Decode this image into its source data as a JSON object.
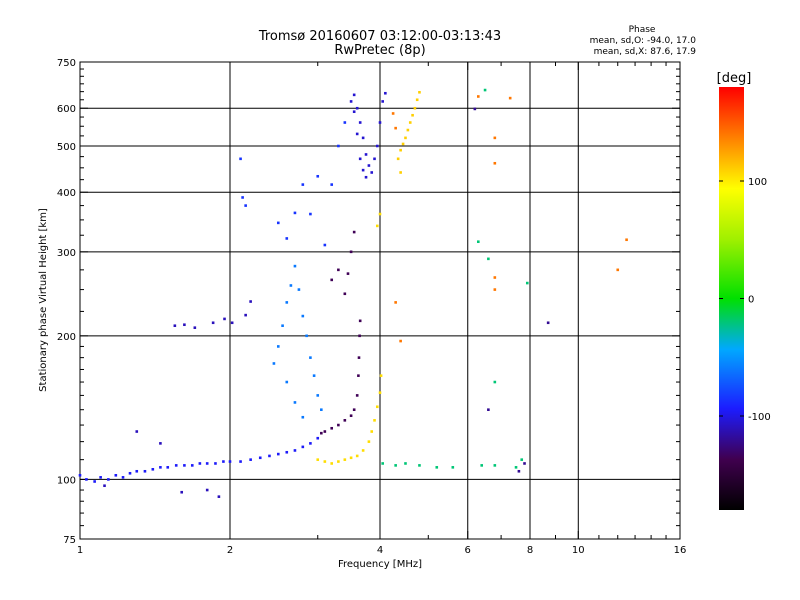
{
  "chart_data": {
    "type": "scatter",
    "title": "Tromsø 20160607 03:12:00-03:13:43",
    "subtitle": "RwPretec (8p)",
    "xlabel": "Frequency [MHz]",
    "ylabel": "Stationary phase Virtual Height [km]",
    "xscale": "log",
    "yscale": "log",
    "xlim": [
      1,
      16
    ],
    "ylim": [
      75,
      750
    ],
    "xticks": [
      1,
      2,
      4,
      6,
      8,
      10,
      16
    ],
    "yticks": [
      75,
      100,
      200,
      300,
      400,
      500,
      600,
      750
    ],
    "xgrid": [
      2,
      4,
      6,
      8,
      10
    ],
    "ygrid": [
      100,
      200,
      300,
      400,
      500,
      600
    ],
    "phase_info": {
      "heading": "Phase",
      "line1": "mean, sd,O: -94.0, 17.0",
      "line2": "mean, sd,X:  87.6, 17.9"
    },
    "colorbar": {
      "label": "[deg]",
      "range": [
        -180,
        180
      ],
      "ticks": [
        100,
        0,
        -100
      ],
      "tick_labels": [
        "100",
        "0",
        "-100"
      ]
    },
    "series": [
      {
        "color_phase": -95,
        "points": [
          [
            1.0,
            102
          ],
          [
            1.03,
            100
          ],
          [
            1.07,
            99
          ],
          [
            1.1,
            101
          ],
          [
            1.14,
            100
          ],
          [
            1.18,
            102
          ],
          [
            1.22,
            101
          ],
          [
            1.26,
            103
          ],
          [
            1.3,
            104
          ],
          [
            1.35,
            104
          ],
          [
            1.4,
            105
          ],
          [
            1.45,
            106
          ],
          [
            1.5,
            106
          ],
          [
            1.56,
            107
          ],
          [
            1.62,
            107
          ],
          [
            1.68,
            107
          ],
          [
            1.74,
            108
          ],
          [
            1.8,
            108
          ],
          [
            1.87,
            108
          ],
          [
            1.94,
            109
          ],
          [
            2.0,
            109
          ],
          [
            2.1,
            109
          ],
          [
            2.2,
            110
          ],
          [
            2.3,
            111
          ],
          [
            2.4,
            112
          ],
          [
            2.5,
            113
          ],
          [
            2.6,
            114
          ],
          [
            2.7,
            115
          ],
          [
            2.8,
            117
          ],
          [
            2.9,
            119
          ],
          [
            3.0,
            122
          ]
        ]
      },
      {
        "color_phase": -110,
        "points": [
          [
            1.12,
            97
          ],
          [
            1.3,
            126
          ],
          [
            1.45,
            119
          ],
          [
            1.6,
            94
          ],
          [
            1.8,
            95
          ],
          [
            1.9,
            92
          ],
          [
            1.55,
            210
          ],
          [
            1.62,
            211
          ],
          [
            1.7,
            208
          ],
          [
            1.85,
            213
          ],
          [
            1.95,
            217
          ],
          [
            2.02,
            213
          ],
          [
            2.15,
            221
          ],
          [
            2.2,
            236
          ]
        ]
      },
      {
        "color_phase": -85,
        "points": [
          [
            2.1,
            470
          ],
          [
            2.12,
            390
          ],
          [
            2.15,
            375
          ],
          [
            2.5,
            345
          ],
          [
            2.6,
            320
          ],
          [
            2.7,
            362
          ],
          [
            2.8,
            415
          ],
          [
            2.9,
            360
          ],
          [
            3.0,
            432
          ],
          [
            3.1,
            310
          ],
          [
            3.2,
            415
          ],
          [
            3.3,
            500
          ],
          [
            3.4,
            560
          ]
        ]
      },
      {
        "color_phase": -60,
        "points": [
          [
            2.45,
            175
          ],
          [
            2.5,
            190
          ],
          [
            2.55,
            210
          ],
          [
            2.6,
            235
          ],
          [
            2.65,
            255
          ],
          [
            2.7,
            280
          ],
          [
            2.75,
            250
          ],
          [
            2.8,
            220
          ],
          [
            2.85,
            200
          ],
          [
            2.9,
            180
          ],
          [
            2.95,
            165
          ],
          [
            3.0,
            150
          ],
          [
            3.05,
            140
          ],
          [
            2.6,
            160
          ],
          [
            2.7,
            145
          ],
          [
            2.8,
            135
          ]
        ]
      },
      {
        "color_phase": -135,
        "points": [
          [
            3.05,
            125
          ],
          [
            3.1,
            126
          ],
          [
            3.2,
            128
          ],
          [
            3.3,
            130
          ],
          [
            3.4,
            133
          ],
          [
            3.5,
            136
          ],
          [
            3.55,
            140
          ],
          [
            3.6,
            150
          ],
          [
            3.62,
            165
          ],
          [
            3.63,
            180
          ],
          [
            3.64,
            200
          ],
          [
            3.65,
            215
          ],
          [
            3.4,
            245
          ],
          [
            3.45,
            270
          ],
          [
            3.5,
            300
          ],
          [
            3.55,
            330
          ],
          [
            3.2,
            262
          ],
          [
            3.3,
            275
          ]
        ]
      },
      {
        "color_phase": -105,
        "points": [
          [
            3.5,
            620
          ],
          [
            3.55,
            640
          ],
          [
            3.6,
            600
          ],
          [
            3.65,
            560
          ],
          [
            3.7,
            520
          ],
          [
            3.75,
            480
          ],
          [
            3.8,
            455
          ],
          [
            3.85,
            440
          ],
          [
            3.9,
            470
          ],
          [
            3.95,
            500
          ],
          [
            4.0,
            560
          ],
          [
            4.05,
            620
          ],
          [
            4.1,
            645
          ],
          [
            3.55,
            590
          ],
          [
            3.6,
            530
          ],
          [
            3.65,
            470
          ],
          [
            3.7,
            445
          ],
          [
            3.75,
            430
          ]
        ]
      },
      {
        "color_phase": 105,
        "points": [
          [
            3.0,
            110
          ],
          [
            3.1,
            109
          ],
          [
            3.2,
            108
          ],
          [
            3.3,
            109
          ],
          [
            3.4,
            110
          ],
          [
            3.5,
            111
          ],
          [
            3.6,
            112
          ],
          [
            3.7,
            115
          ],
          [
            3.8,
            120
          ],
          [
            3.85,
            126
          ],
          [
            3.9,
            133
          ],
          [
            3.95,
            142
          ],
          [
            4.0,
            152
          ],
          [
            4.02,
            165
          ],
          [
            3.95,
            340
          ],
          [
            4.0,
            360
          ]
        ]
      },
      {
        "color_phase": 110,
        "points": [
          [
            4.4,
            490
          ],
          [
            4.45,
            505
          ],
          [
            4.5,
            520
          ],
          [
            4.55,
            540
          ],
          [
            4.6,
            560
          ],
          [
            4.65,
            580
          ],
          [
            4.7,
            600
          ],
          [
            4.75,
            625
          ],
          [
            4.8,
            648
          ],
          [
            4.35,
            470
          ],
          [
            4.4,
            440
          ]
        ]
      },
      {
        "color_phase": 140,
        "points": [
          [
            4.25,
            585
          ],
          [
            4.3,
            545
          ],
          [
            4.4,
            195
          ],
          [
            4.3,
            235
          ],
          [
            6.3,
            635
          ],
          [
            6.8,
            520
          ],
          [
            6.8,
            460
          ],
          [
            7.3,
            630
          ],
          [
            6.8,
            265
          ],
          [
            6.8,
            250
          ],
          [
            12.0,
            275
          ],
          [
            12.5,
            318
          ]
        ]
      },
      {
        "color_phase": -20,
        "points": [
          [
            4.05,
            108
          ],
          [
            4.3,
            107
          ],
          [
            4.5,
            108
          ],
          [
            4.8,
            107
          ],
          [
            5.2,
            106
          ],
          [
            5.6,
            106
          ],
          [
            6.4,
            107
          ],
          [
            6.8,
            107
          ],
          [
            7.5,
            106
          ],
          [
            7.7,
            110
          ],
          [
            6.3,
            315
          ],
          [
            6.8,
            160
          ],
          [
            6.6,
            290
          ],
          [
            7.9,
            258
          ],
          [
            6.5,
            655
          ]
        ]
      },
      {
        "color_phase": -120,
        "points": [
          [
            6.2,
            598
          ],
          [
            6.6,
            140
          ],
          [
            7.6,
            104
          ],
          [
            7.8,
            108
          ],
          [
            8.7,
            213
          ]
        ]
      }
    ]
  }
}
